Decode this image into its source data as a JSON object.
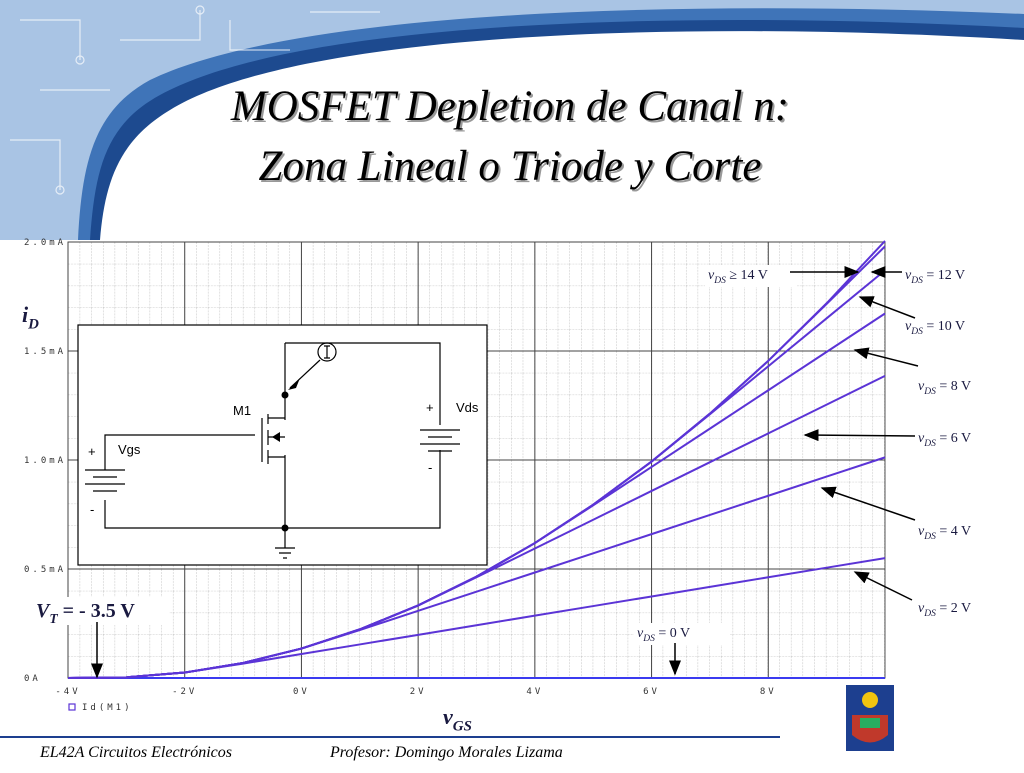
{
  "chart_data": {
    "type": "line",
    "title": [
      "MOSFET Depletion de Canal n:",
      "Zona Lineal o Triode y Corte"
    ],
    "x_label": {
      "base": "v",
      "sub": "GS"
    },
    "y_label": {
      "base": "i",
      "sub": "D"
    },
    "x": [
      -4,
      -3,
      -2,
      -1,
      0,
      1,
      2,
      3,
      4,
      5,
      6,
      7,
      8,
      9,
      10
    ],
    "xlim": [
      -4,
      10
    ],
    "ylim": [
      0,
      2
    ],
    "xticks": [
      {
        "value": -4,
        "label": "-4V"
      },
      {
        "value": -2,
        "label": "-2V"
      },
      {
        "value": 0,
        "label": "0V"
      },
      {
        "value": 2,
        "label": "2V"
      },
      {
        "value": 4,
        "label": "4V"
      },
      {
        "value": 6,
        "label": "6V"
      },
      {
        "value": 8,
        "label": "8V"
      }
    ],
    "yticks": [
      {
        "value": 0,
        "label": "0A"
      },
      {
        "value": 0.5,
        "label": "0.5mA"
      },
      {
        "value": 1.0,
        "label": "1.0mA"
      },
      {
        "value": 1.5,
        "label": "1.5mA"
      },
      {
        "value": 2.0,
        "label": "2.0mA"
      }
    ],
    "grid": true,
    "legend": "Id(M1)",
    "series": [
      {
        "name": {
          "base": "v",
          "sub": "DS",
          "text": " = 0 V"
        },
        "color": "#3b3bf0",
        "values": [
          0,
          0,
          0,
          0,
          0,
          0,
          0,
          0,
          0,
          0,
          0,
          0,
          0,
          0,
          0
        ]
      },
      {
        "name": {
          "base": "v",
          "sub": "DS",
          "text": " = 2 V"
        },
        "color": "#5b34d6",
        "values": [
          0,
          0.003,
          0.025,
          0.066,
          0.11,
          0.154,
          0.198,
          0.242,
          0.286,
          0.33,
          0.374,
          0.418,
          0.462,
          0.506,
          0.55
        ]
      },
      {
        "name": {
          "base": "v",
          "sub": "DS",
          "text": " = 4 V"
        },
        "color": "#5b34d6",
        "values": [
          0,
          0.003,
          0.025,
          0.069,
          0.135,
          0.22,
          0.308,
          0.396,
          0.484,
          0.572,
          0.66,
          0.748,
          0.836,
          0.924,
          1.012
        ]
      },
      {
        "name": {
          "base": "v",
          "sub": "DS",
          "text": " = 6 V"
        },
        "color": "#5b34d6",
        "values": [
          0,
          0.003,
          0.025,
          0.069,
          0.135,
          0.223,
          0.333,
          0.462,
          0.594,
          0.726,
          0.858,
          0.99,
          1.122,
          1.254,
          1.386
        ]
      },
      {
        "name": {
          "base": "v",
          "sub": "DS",
          "text": " = 8 V"
        },
        "color": "#5b34d6",
        "values": [
          0,
          0.003,
          0.025,
          0.069,
          0.135,
          0.223,
          0.333,
          0.465,
          0.619,
          0.792,
          0.968,
          1.144,
          1.32,
          1.496,
          1.672
        ]
      },
      {
        "name": {
          "base": "v",
          "sub": "DS",
          "text": " = 10 V"
        },
        "color": "#5b34d6",
        "values": [
          0,
          0.003,
          0.025,
          0.069,
          0.135,
          0.223,
          0.333,
          0.465,
          0.619,
          0.795,
          0.993,
          1.21,
          1.43,
          1.65,
          1.87
        ]
      },
      {
        "name": {
          "base": "v",
          "sub": "DS",
          "text": " = 12 V"
        },
        "color": "#5b34d6",
        "values": [
          0,
          0.003,
          0.025,
          0.069,
          0.135,
          0.223,
          0.333,
          0.465,
          0.619,
          0.795,
          0.993,
          1.213,
          1.455,
          1.716,
          1.98
        ]
      },
      {
        "name": {
          "base": "v",
          "sub": "DS",
          "text": " ≥ 14 V"
        },
        "color": "#5b34d6",
        "values": [
          0,
          0.003,
          0.025,
          0.069,
          0.135,
          0.223,
          0.333,
          0.465,
          0.619,
          0.795,
          0.993,
          1.213,
          1.455,
          1.719,
          2.005
        ]
      }
    ],
    "annotation": {
      "base": "V",
      "sub": "T",
      "text": " = - 3.5 V"
    },
    "circuit": {
      "transistor": "M1",
      "source_gs": "Vgs",
      "source_ds": "Vds",
      "plus": "+",
      "minus": "-"
    }
  },
  "footer": {
    "course": "EL42A Circuitos Electrónicos",
    "professor": "Profesor: Domingo Morales Lizama"
  }
}
